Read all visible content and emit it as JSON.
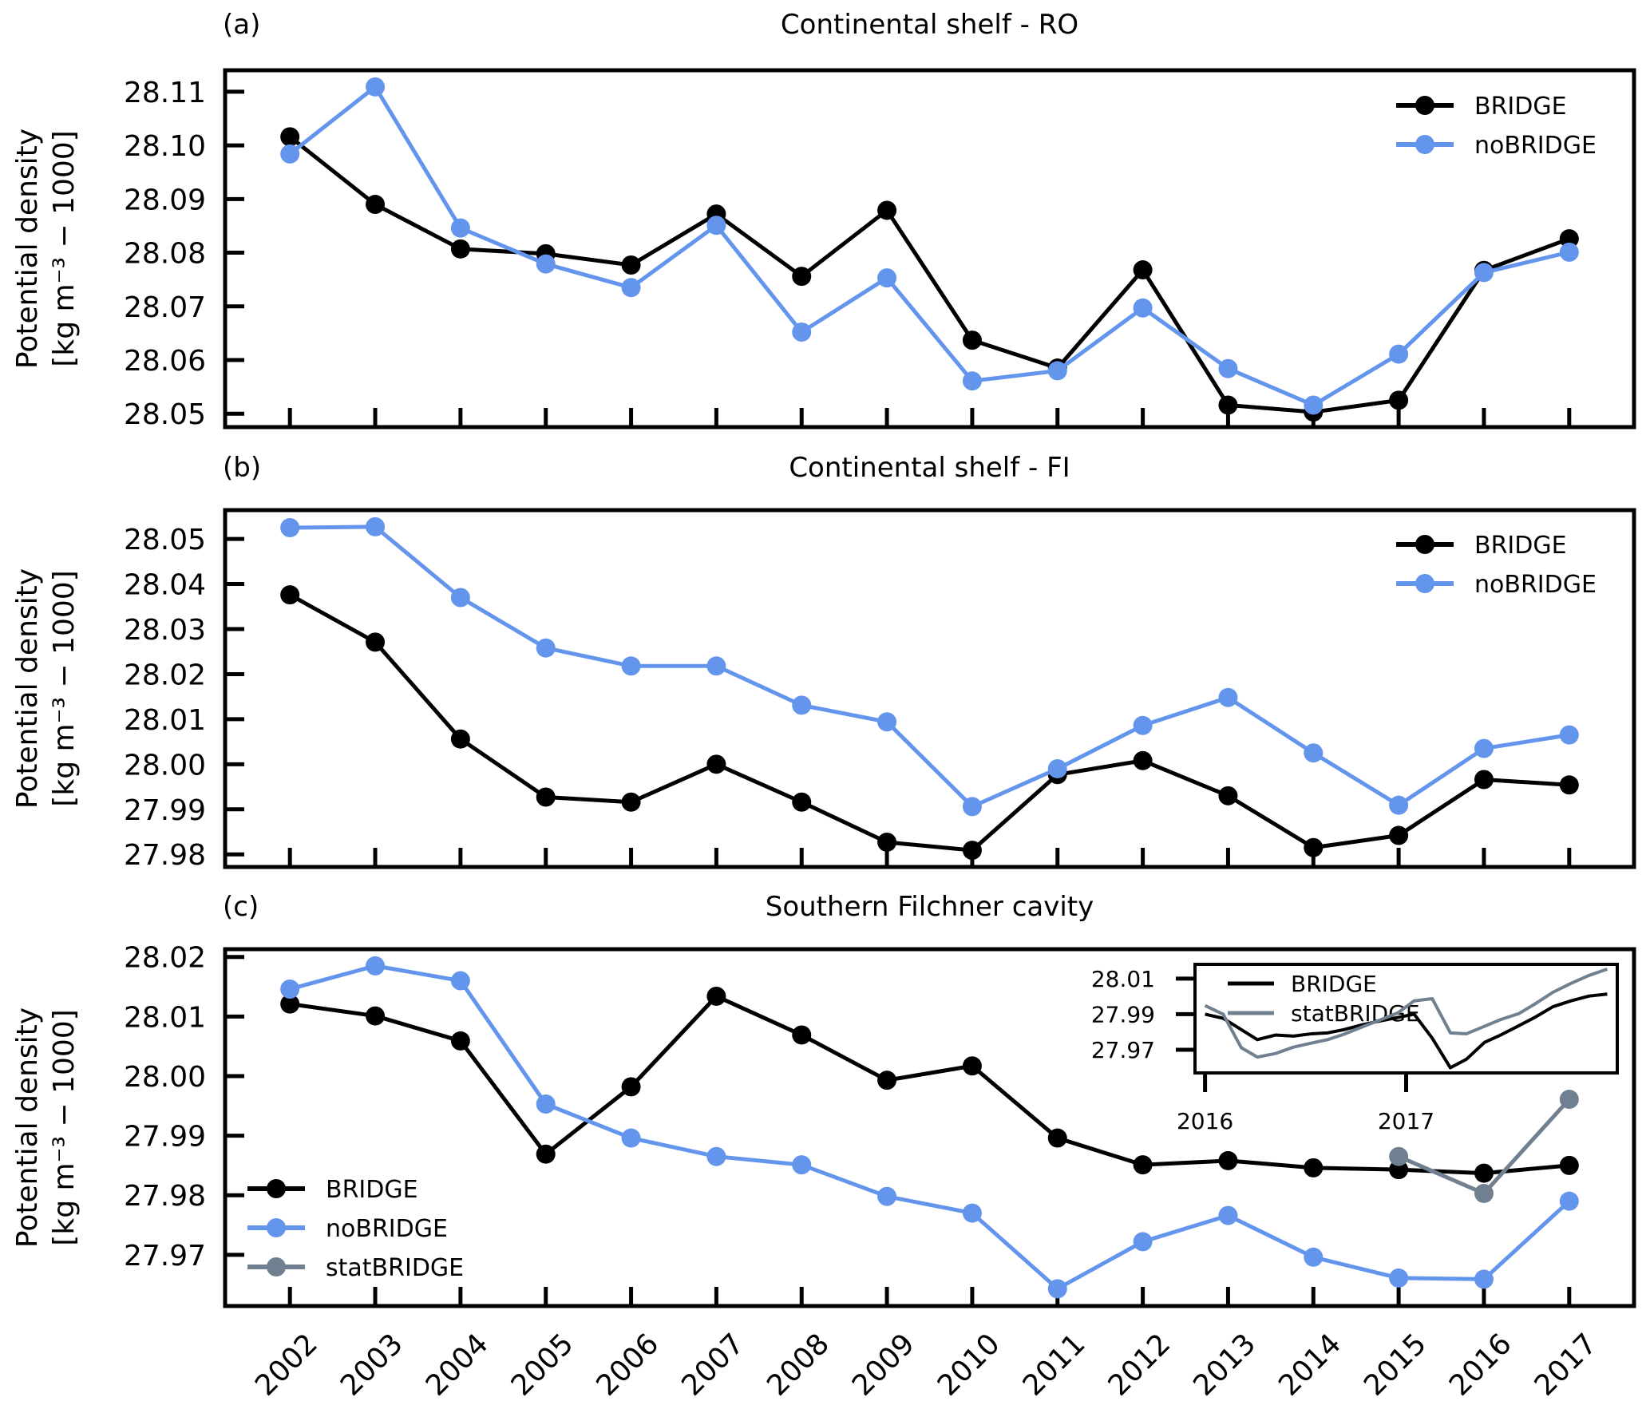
{
  "colors": {
    "BRIDGE": "#000000",
    "noBRIDGE": "#6495ED",
    "statBRIDGE": "#708090"
  },
  "chart_data": [
    {
      "type": "line",
      "panel": "(a)",
      "title": "Continental shelf - RO",
      "xlabel": "",
      "ylabel": "Potential density [kg m^-3 - 1000]",
      "ylabel_line1": "Potential density",
      "ylabel_line2": "[kg m⁻³ − 1000]",
      "x": [
        2002,
        2003,
        2004,
        2005,
        2006,
        2007,
        2008,
        2009,
        2010,
        2011,
        2012,
        2013,
        2014,
        2015,
        2016,
        2017
      ],
      "xlim": [
        2001.24,
        2017.76
      ],
      "ylim": [
        28.0475,
        28.114
      ],
      "yticks": [
        "28.05",
        "28.06",
        "28.07",
        "28.08",
        "28.09",
        "28.10",
        "28.11"
      ],
      "ytick_values": [
        28.05,
        28.06,
        28.07,
        28.08,
        28.09,
        28.1,
        28.11
      ],
      "show_xtick_labels": false,
      "legend": {
        "placement": "top-right",
        "entries": [
          "BRIDGE",
          "noBRIDGE"
        ]
      },
      "series": [
        {
          "name": "BRIDGE",
          "values": [
            28.1016,
            28.089,
            28.0807,
            28.0798,
            28.0777,
            28.0872,
            28.0756,
            28.0879,
            28.0637,
            28.0585,
            28.0768,
            28.0516,
            28.0503,
            28.0525,
            28.0767,
            28.0826
          ]
        },
        {
          "name": "noBRIDGE",
          "values": [
            28.0984,
            28.1109,
            28.0846,
            28.0779,
            28.0735,
            28.0851,
            28.0652,
            28.0753,
            28.0561,
            28.058,
            28.0697,
            28.0584,
            28.0516,
            28.0611,
            28.0763,
            28.0801
          ]
        }
      ]
    },
    {
      "type": "line",
      "panel": "(b)",
      "title": "Continental shelf - FI",
      "xlabel": "",
      "ylabel": "Potential density [kg m^-3 - 1000]",
      "ylabel_line1": "Potential density",
      "ylabel_line2": "[kg m⁻³ − 1000]",
      "x": [
        2002,
        2003,
        2004,
        2005,
        2006,
        2007,
        2008,
        2009,
        2010,
        2011,
        2012,
        2013,
        2014,
        2015,
        2016,
        2017
      ],
      "xlim": [
        2001.24,
        2017.76
      ],
      "ylim": [
        27.9772,
        28.0564
      ],
      "yticks": [
        "27.98",
        "27.99",
        "28.00",
        "28.01",
        "28.02",
        "28.03",
        "28.04",
        "28.05"
      ],
      "ytick_values": [
        27.98,
        27.99,
        28.0,
        28.01,
        28.02,
        28.03,
        28.04,
        28.05
      ],
      "show_xtick_labels": false,
      "legend": {
        "placement": "top-right",
        "entries": [
          "BRIDGE",
          "noBRIDGE"
        ]
      },
      "series": [
        {
          "name": "BRIDGE",
          "values": [
            28.0376,
            28.0271,
            28.0056,
            27.9927,
            27.9916,
            28.0,
            27.9916,
            27.9827,
            27.9809,
            27.9977,
            28.0008,
            27.993,
            27.9815,
            27.9842,
            27.9966,
            27.9954
          ]
        },
        {
          "name": "noBRIDGE",
          "values": [
            28.0525,
            28.0527,
            28.037,
            28.0258,
            28.0218,
            28.0218,
            28.0131,
            28.0094,
            27.9906,
            27.999,
            28.0086,
            28.0148,
            28.0025,
            27.9909,
            28.0035,
            28.0065
          ]
        }
      ]
    },
    {
      "type": "line",
      "panel": "(c)",
      "title": "Southern Filchner cavity",
      "xlabel": "",
      "ylabel": "Potential density [kg m^-3 - 1000]",
      "ylabel_line1": "Potential density",
      "ylabel_line2": "[kg m⁻³ − 1000]",
      "x": [
        2002,
        2003,
        2004,
        2005,
        2006,
        2007,
        2008,
        2009,
        2010,
        2011,
        2012,
        2013,
        2014,
        2015,
        2016,
        2017
      ],
      "xticks": [
        "2002",
        "2003",
        "2004",
        "2005",
        "2006",
        "2007",
        "2008",
        "2009",
        "2010",
        "2011",
        "2012",
        "2013",
        "2014",
        "2015",
        "2016",
        "2017"
      ],
      "xlim": [
        2001.24,
        2017.76
      ],
      "ylim": [
        27.9614,
        28.0213
      ],
      "yticks": [
        "27.97",
        "27.98",
        "27.99",
        "28.00",
        "28.01",
        "28.02"
      ],
      "ytick_values": [
        27.97,
        27.98,
        27.99,
        28.0,
        28.01,
        28.02
      ],
      "show_xtick_labels": true,
      "legend": {
        "placement": "lower-left",
        "entries": [
          "BRIDGE",
          "noBRIDGE",
          "statBRIDGE"
        ]
      },
      "series": [
        {
          "name": "BRIDGE",
          "values": [
            28.0121,
            28.0101,
            28.0059,
            27.9869,
            27.9982,
            28.0134,
            28.0069,
            27.9993,
            28.0017,
            27.9896,
            27.9851,
            27.9858,
            27.9846,
            27.9843,
            27.9837,
            27.985
          ]
        },
        {
          "name": "noBRIDGE",
          "values": [
            28.0146,
            28.0185,
            28.016,
            27.9953,
            27.9896,
            27.9865,
            27.9851,
            27.9798,
            27.977,
            27.9643,
            27.9722,
            27.9766,
            27.9696,
            27.9661,
            27.9659,
            27.979
          ]
        },
        {
          "name": "statBRIDGE",
          "x": [
            2015,
            2016,
            2017
          ],
          "values": [
            27.9865,
            27.9803,
            27.9961
          ]
        }
      ],
      "inset": {
        "type": "line",
        "xticks": [
          "2016",
          "2017"
        ],
        "xtick_values": [
          2016,
          2017
        ],
        "yticks": [
          "27.97",
          "27.99",
          "28.01"
        ],
        "ytick_values": [
          27.97,
          27.99,
          28.01
        ],
        "xlim": [
          2015.95,
          2018.05
        ],
        "ylim": [
          27.957,
          28.018
        ],
        "legend": {
          "placement": "top-left",
          "entries": [
            "BRIDGE",
            "statBRIDGE"
          ]
        },
        "series": [
          {
            "name": "BRIDGE",
            "x": [
              2016.0,
              2016.09,
              2016.26,
              2016.35,
              2016.44,
              2016.53,
              2016.61,
              2016.69,
              2016.78,
              2016.87,
              2016.96,
              2017.04,
              2017.13,
              2017.22,
              2017.3,
              2017.39,
              2017.47,
              2017.56,
              2017.64,
              2017.73,
              2017.82,
              2017.91,
              2018.0
            ],
            "values": [
              27.99,
              27.9877,
              27.9757,
              27.9783,
              27.9777,
              27.979,
              27.9795,
              27.9813,
              27.984,
              27.9862,
              27.9882,
              27.99,
              27.9765,
              27.9599,
              27.9647,
              27.9742,
              27.9783,
              27.9835,
              27.9882,
              27.9942,
              27.9975,
              28.0002,
              28.0013
            ]
          },
          {
            "name": "statBRIDGE",
            "x": [
              2016.0,
              2016.09,
              2016.18,
              2016.26,
              2016.35,
              2016.44,
              2016.53,
              2016.61,
              2016.69,
              2016.78,
              2016.87,
              2016.96,
              2017.04,
              2017.13,
              2017.22,
              2017.3,
              2017.39,
              2017.47,
              2017.56,
              2017.64,
              2017.73,
              2017.82,
              2017.91,
              2018.0
            ],
            "values": [
              27.9948,
              27.99,
              27.9712,
              27.9659,
              27.9679,
              27.9715,
              27.9738,
              27.9757,
              27.9787,
              27.9828,
              27.9867,
              27.9908,
              27.9975,
              27.9987,
              27.9795,
              27.979,
              27.9832,
              27.987,
              27.9903,
              27.9957,
              28.0023,
              28.0073,
              28.0118,
              28.0153
            ]
          }
        ]
      }
    }
  ]
}
